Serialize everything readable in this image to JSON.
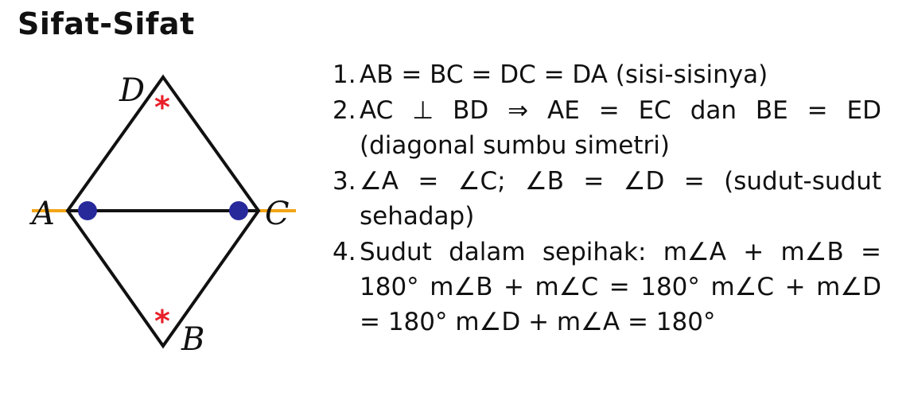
{
  "title": "Sifat-Sifat",
  "diagram": {
    "vertices": {
      "A": "A",
      "B": "B",
      "C": "C",
      "D": "D"
    },
    "angle_mark": "*",
    "colors": {
      "shape": "#111111",
      "axis": "#f2a516",
      "dot": "#27299b",
      "star": "#e8202a"
    }
  },
  "properties": [
    {
      "num": "1.",
      "text": "AB = BC = DC = DA (sisi-sisinya)"
    },
    {
      "num": "2.",
      "text": "AC ⊥ BD ⇒ AE = EC dan BE = ED (diagonal sumbu simetri)"
    },
    {
      "num": "3.",
      "text": "∠A = ∠C; ∠B = ∠D = (sudut-sudut sehadap)"
    },
    {
      "num": "4.",
      "text": "Sudut dalam sepihak: m∠A + m∠B = 180° m∠B + m∠C = 180° m∠C + m∠D = 180° m∠D + m∠A = 180°"
    }
  ]
}
